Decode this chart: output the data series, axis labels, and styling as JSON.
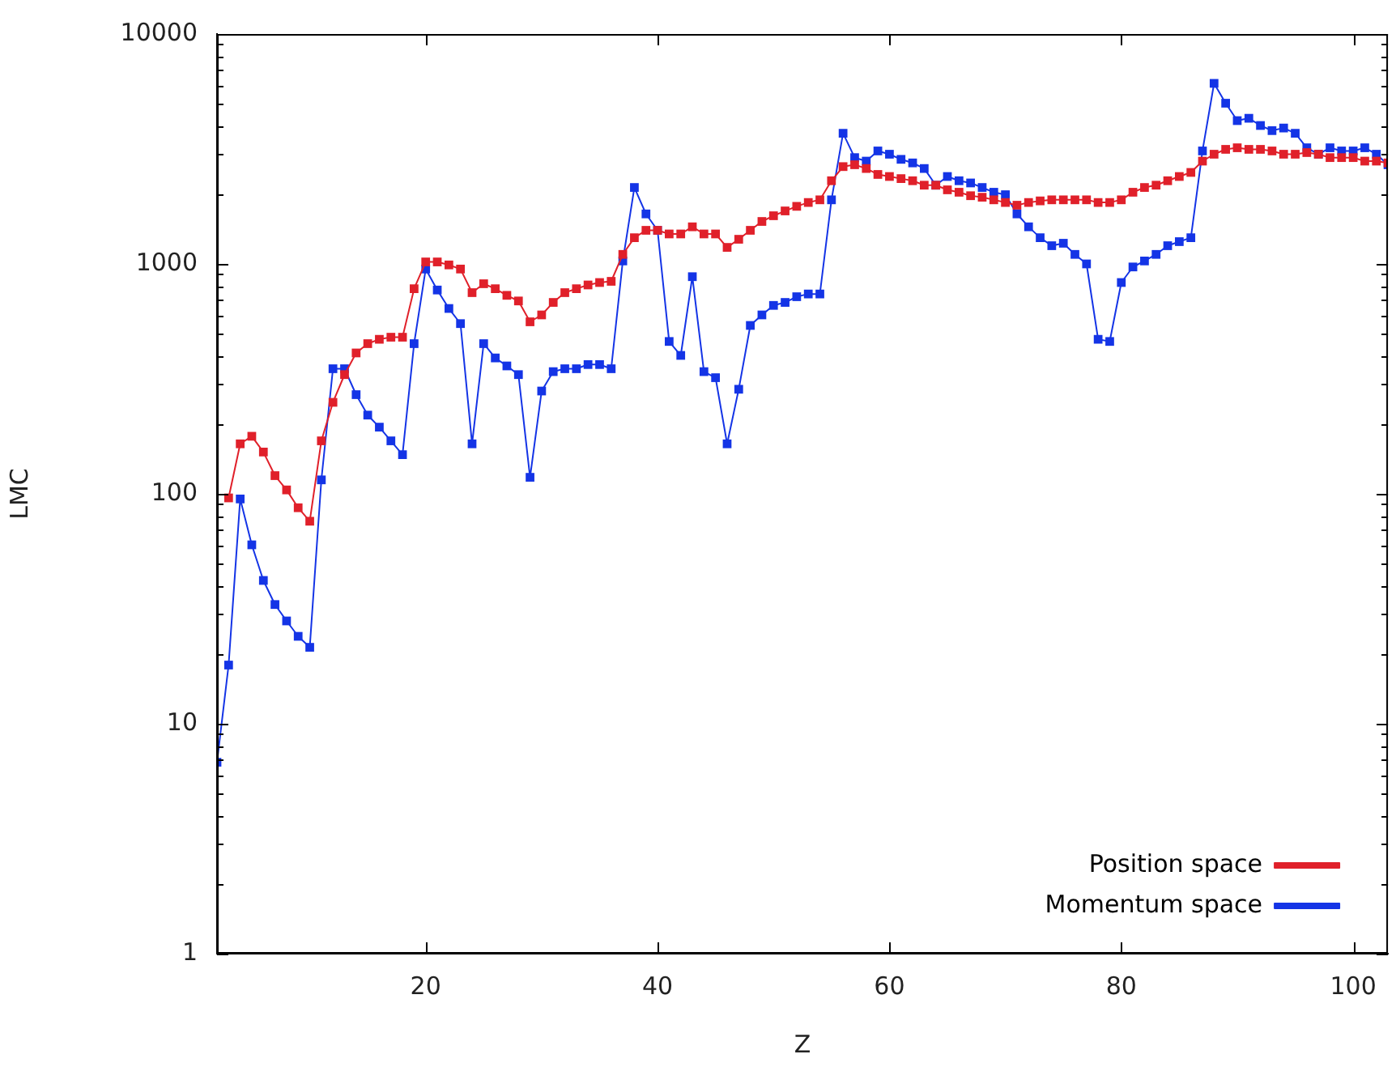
{
  "chart_data": {
    "type": "line",
    "xlabel": "Z",
    "ylabel": "LMC",
    "log": "y",
    "xlim": [
      2,
      103
    ],
    "xticks": [
      20,
      40,
      60,
      80,
      100
    ],
    "ylim": [
      1,
      10000
    ],
    "yticks": [
      1,
      10,
      100,
      1000,
      10000
    ],
    "grid": false,
    "legend": "bottom right",
    "marker": "square",
    "line_style": "solid",
    "x": [
      2,
      3,
      4,
      5,
      6,
      7,
      8,
      9,
      10,
      11,
      12,
      13,
      14,
      15,
      16,
      17,
      18,
      19,
      20,
      21,
      22,
      23,
      24,
      25,
      26,
      27,
      28,
      29,
      30,
      31,
      32,
      33,
      34,
      35,
      36,
      37,
      38,
      39,
      40,
      41,
      42,
      43,
      44,
      45,
      46,
      47,
      48,
      49,
      50,
      51,
      52,
      53,
      54,
      55,
      56,
      57,
      58,
      59,
      60,
      61,
      62,
      63,
      64,
      65,
      66,
      67,
      68,
      69,
      70,
      71,
      72,
      73,
      74,
      75,
      76,
      77,
      78,
      79,
      80,
      81,
      82,
      83,
      84,
      85,
      86,
      87,
      88,
      89,
      90,
      91,
      92,
      93,
      94,
      95,
      96,
      97,
      98,
      99,
      100,
      101,
      102,
      103
    ],
    "series": [
      {
        "name": "Position space",
        "color": "#e0202a",
        "values": [
          null,
          96,
          165,
          178,
          152,
          120,
          104,
          87,
          76,
          170,
          250,
          330,
          410,
          450,
          470,
          480,
          480,
          780,
          1020,
          1020,
          990,
          950,
          750,
          820,
          780,
          730,
          690,
          560,
          600,
          680,
          750,
          780,
          810,
          830,
          840,
          1100,
          1300,
          1400,
          1400,
          1350,
          1350,
          1450,
          1350,
          1350,
          1180,
          1280,
          1400,
          1530,
          1620,
          1700,
          1780,
          1850,
          1900,
          2300,
          2650,
          2700,
          2600,
          2450,
          2400,
          2350,
          2300,
          2200,
          2200,
          2100,
          2050,
          1980,
          1950,
          1900,
          1850,
          1800,
          1850,
          1880,
          1900,
          1900,
          1900,
          1900,
          1850,
          1850,
          1900,
          2050,
          2150,
          2200,
          2300,
          2400,
          2500,
          2800,
          3000,
          3150,
          3200,
          3150,
          3150,
          3100,
          3000,
          3000,
          3050,
          3000,
          2900,
          2900,
          2900,
          2800,
          2800,
          2750
        ]
      },
      {
        "name": "Momentum space",
        "color": "#1434e6",
        "values": [
          6.8,
          18,
          95,
          60,
          42,
          33,
          28,
          24,
          21.5,
          115,
          350,
          350,
          270,
          220,
          195,
          170,
          148,
          450,
          950,
          770,
          640,
          550,
          165,
          450,
          390,
          360,
          330,
          118,
          280,
          340,
          350,
          350,
          365,
          365,
          350,
          1030,
          2150,
          1650,
          1400,
          460,
          400,
          880,
          340,
          320,
          165,
          285,
          540,
          600,
          660,
          680,
          720,
          740,
          740,
          1900,
          3700,
          2900,
          2800,
          3100,
          3000,
          2850,
          2750,
          2600,
          2200,
          2400,
          2300,
          2250,
          2150,
          2050,
          2000,
          1650,
          1450,
          1300,
          1200,
          1230,
          1100,
          1000,
          470,
          460,
          830,
          970,
          1030,
          1100,
          1200,
          1250,
          1300,
          3100,
          6100,
          5000,
          4200,
          4300,
          4000,
          3800,
          3900,
          3700,
          3200,
          3000,
          3200,
          3100,
          3100,
          3200,
          3000,
          2700
        ]
      }
    ]
  }
}
